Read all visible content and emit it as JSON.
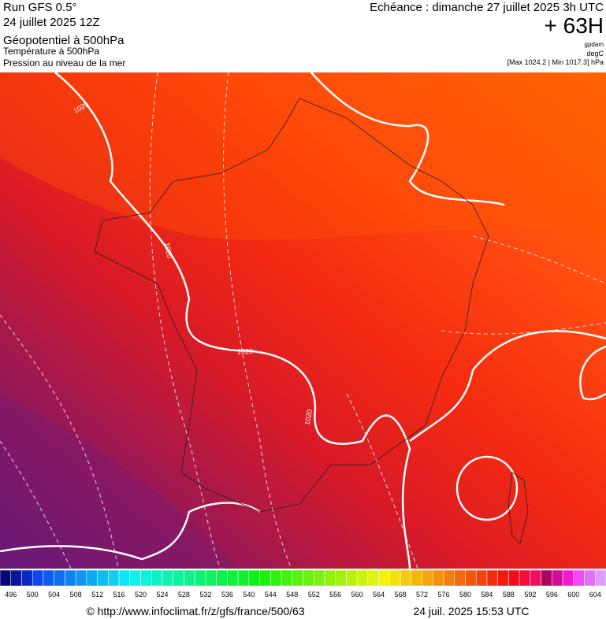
{
  "header": {
    "left": [
      "Run GFS 0.5°",
      "24 juillet 2025 12Z"
    ],
    "fields": [
      "Géopotentiel à 500hPa",
      "Température à 500hPa",
      "Pression au niveau de la mer"
    ],
    "valid": "Echéance : dimanche 27 juillet 2025 3h UTC",
    "lead": "+ 63H",
    "units": [
      "gpdam",
      "degC"
    ],
    "range": "[Max 1024.2 | Min 1017.3] hPa"
  },
  "contour_labels": [
    "1020",
    "1020",
    "1020",
    "1020"
  ],
  "colorbar": {
    "labels": [
      496,
      500,
      504,
      508,
      512,
      516,
      520,
      524,
      528,
      532,
      536,
      540,
      544,
      548,
      552,
      556,
      560,
      564,
      568,
      572,
      576,
      580,
      584,
      588,
      592,
      596,
      600,
      604
    ]
  },
  "footer": {
    "url": "© http://www.infoclimat.fr/z/gfs/france/500/63",
    "date": "24 juil. 2025 15:53 UTC"
  }
}
